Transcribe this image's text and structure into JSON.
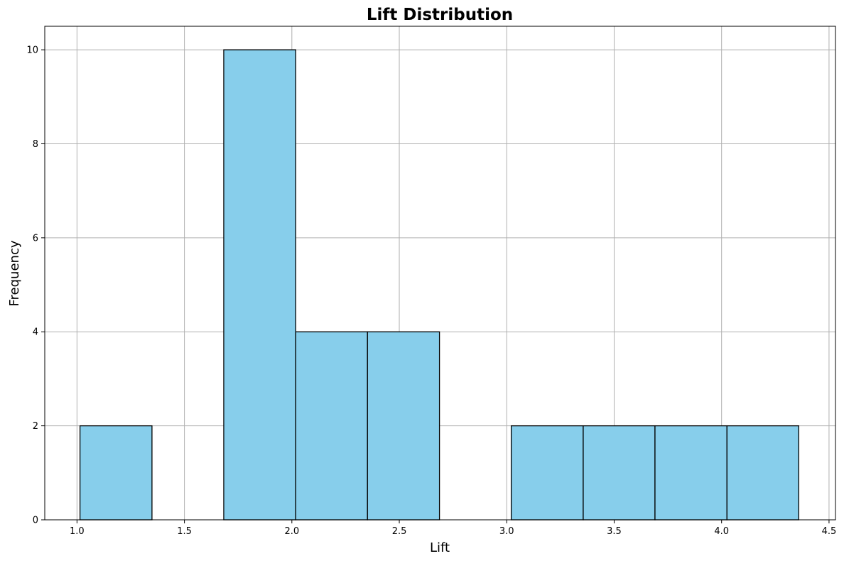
{
  "chart_data": {
    "type": "bar",
    "title": "Lift Distribution",
    "xlabel": "Lift",
    "ylabel": "Frequency",
    "xlim": [
      0.85,
      4.53
    ],
    "ylim": [
      0,
      10.5
    ],
    "xticks": [
      "1.0",
      "1.5",
      "2.0",
      "2.5",
      "3.0",
      "3.5",
      "4.0",
      "4.5"
    ],
    "yticks": [
      "0",
      "2",
      "4",
      "6",
      "8",
      "10"
    ],
    "grid": true,
    "bins": [
      {
        "start": 1.014,
        "end": 1.349,
        "count": 2
      },
      {
        "start": 1.349,
        "end": 1.683,
        "count": 0
      },
      {
        "start": 1.683,
        "end": 2.018,
        "count": 10
      },
      {
        "start": 2.018,
        "end": 2.352,
        "count": 4
      },
      {
        "start": 2.352,
        "end": 2.687,
        "count": 4
      },
      {
        "start": 2.687,
        "end": 3.021,
        "count": 0
      },
      {
        "start": 3.021,
        "end": 3.356,
        "count": 2
      },
      {
        "start": 3.356,
        "end": 3.69,
        "count": 2
      },
      {
        "start": 3.69,
        "end": 4.025,
        "count": 2
      },
      {
        "start": 4.025,
        "end": 4.359,
        "count": 2
      }
    ],
    "colors": {
      "bar_fill": "#87CEEB",
      "bar_edge": "#000000",
      "grid": "#b0b0b0"
    }
  }
}
